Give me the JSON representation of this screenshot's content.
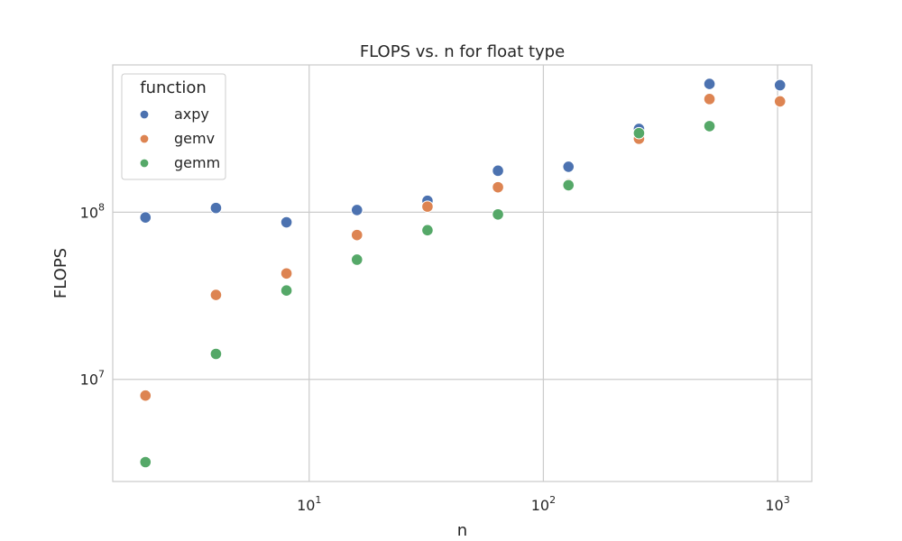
{
  "chart_data": {
    "type": "scatter",
    "title": "FLOPS vs. n for float type",
    "xlabel": "n",
    "ylabel": "FLOPS",
    "xscale": "log",
    "yscale": "log",
    "xlim": [
      1.45,
      1400
    ],
    "ylim": [
      2450000.0,
      760000000.0
    ],
    "grid": true,
    "legend": {
      "title": "function",
      "placement": "top-left"
    },
    "xticks": [
      {
        "value": 10,
        "base": "10",
        "exp": "1"
      },
      {
        "value": 100,
        "base": "10",
        "exp": "2"
      },
      {
        "value": 1000,
        "base": "10",
        "exp": "3"
      }
    ],
    "yticks": [
      {
        "value": 10000000,
        "base": "10",
        "exp": "7"
      },
      {
        "value": 100000000,
        "base": "10",
        "exp": "8"
      }
    ],
    "series": [
      {
        "name": "axpy",
        "color": "#4c72b0",
        "points": [
          {
            "x": 2,
            "y": 93000000
          },
          {
            "x": 4,
            "y": 106000000
          },
          {
            "x": 8,
            "y": 87000000
          },
          {
            "x": 16,
            "y": 103000000
          },
          {
            "x": 32,
            "y": 117000000
          },
          {
            "x": 64,
            "y": 177000000
          },
          {
            "x": 128,
            "y": 187000000
          },
          {
            "x": 256,
            "y": 315000000
          },
          {
            "x": 512,
            "y": 585000000
          },
          {
            "x": 1024,
            "y": 575000000
          }
        ]
      },
      {
        "name": "gemv",
        "color": "#dd8452",
        "points": [
          {
            "x": 2,
            "y": 8000000
          },
          {
            "x": 4,
            "y": 32000000
          },
          {
            "x": 8,
            "y": 43000000
          },
          {
            "x": 16,
            "y": 73000000
          },
          {
            "x": 32,
            "y": 108000000
          },
          {
            "x": 64,
            "y": 141000000
          },
          {
            "x": 128,
            "y": 147000000
          },
          {
            "x": 256,
            "y": 275000000
          },
          {
            "x": 512,
            "y": 475000000
          },
          {
            "x": 1024,
            "y": 460000000
          }
        ]
      },
      {
        "name": "gemm",
        "color": "#55a868",
        "points": [
          {
            "x": 2,
            "y": 3200000
          },
          {
            "x": 4,
            "y": 14200000
          },
          {
            "x": 8,
            "y": 34000000
          },
          {
            "x": 16,
            "y": 52000000
          },
          {
            "x": 32,
            "y": 78000000
          },
          {
            "x": 64,
            "y": 97000000
          },
          {
            "x": 128,
            "y": 145000000
          },
          {
            "x": 256,
            "y": 297000000
          },
          {
            "x": 512,
            "y": 327000000
          }
        ]
      }
    ]
  }
}
